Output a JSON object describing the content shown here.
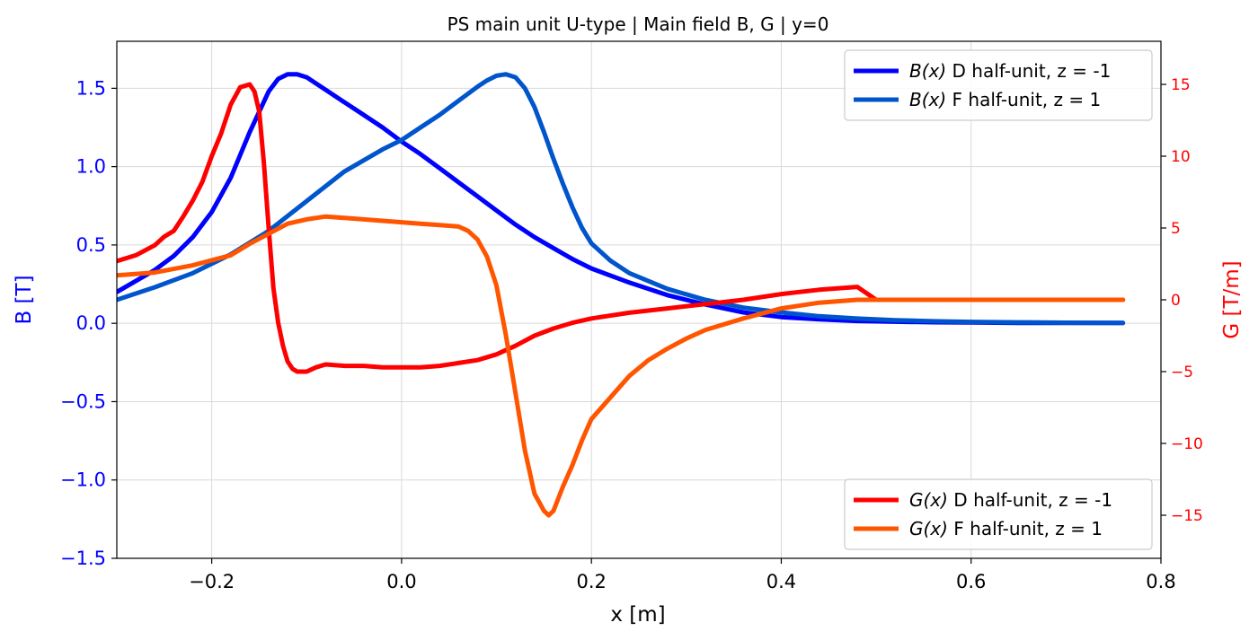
{
  "chart_data": {
    "type": "line",
    "title": "PS main unit U-type | Main field B, G | y=0",
    "xlabel": "x [m]",
    "ylabel_left": "B [T]",
    "ylabel_right": "G [T/m]",
    "xlim": [
      -0.3,
      0.8
    ],
    "ylim_left": [
      -1.5,
      1.8
    ],
    "ylim_right": [
      -18,
      18
    ],
    "x_ticks": [
      "−0.2",
      "0.0",
      "0.2",
      "0.4",
      "0.6",
      "0.8"
    ],
    "x_tick_values": [
      -0.2,
      0.0,
      0.2,
      0.4,
      0.6,
      0.8
    ],
    "y_left_ticks": [
      "−1.5",
      "−1.0",
      "−0.5",
      "0.0",
      "0.5",
      "1.0",
      "1.5"
    ],
    "y_left_tick_values": [
      -1.5,
      -1.0,
      -0.5,
      0.0,
      0.5,
      1.0,
      1.5
    ],
    "y_right_ticks": [
      "−15",
      "−10",
      "−5",
      "0",
      "5",
      "10",
      "15"
    ],
    "y_right_tick_values": [
      -15,
      -10,
      -5,
      0,
      5,
      10,
      15
    ],
    "grid": true,
    "left_axis_color": "#0000ff",
    "right_axis_color": "#ff0000",
    "legends": [
      {
        "placement": "top-right",
        "entries": [
          {
            "func": "B(x)",
            "text": " D half-unit, z = -1",
            "color": "#0000ff"
          },
          {
            "func": "B(x)",
            "text": " F half-unit, z = 1",
            "color": "#0055cc"
          }
        ]
      },
      {
        "placement": "bottom-right",
        "entries": [
          {
            "func": "G(x)",
            "text": " D half-unit, z = -1",
            "color": "#ff0000"
          },
          {
            "func": "G(x)",
            "text": " F half-unit, z = 1",
            "color": "#ff5500"
          }
        ]
      }
    ],
    "series": [
      {
        "name": "B(x) D half-unit, z = -1",
        "axis": "left",
        "color": "#0000ff",
        "x": [
          -0.3,
          -0.28,
          -0.26,
          -0.24,
          -0.22,
          -0.2,
          -0.18,
          -0.16,
          -0.14,
          -0.13,
          -0.12,
          -0.11,
          -0.1,
          -0.09,
          -0.08,
          -0.06,
          -0.04,
          -0.02,
          0.0,
          0.02,
          0.04,
          0.06,
          0.08,
          0.1,
          0.12,
          0.14,
          0.16,
          0.18,
          0.2,
          0.24,
          0.28,
          0.32,
          0.36,
          0.4,
          0.44,
          0.48,
          0.52,
          0.56,
          0.6,
          0.65,
          0.7,
          0.76
        ],
        "y": [
          0.2,
          0.27,
          0.34,
          0.43,
          0.55,
          0.71,
          0.93,
          1.22,
          1.48,
          1.56,
          1.59,
          1.59,
          1.57,
          1.53,
          1.49,
          1.41,
          1.33,
          1.25,
          1.16,
          1.08,
          0.99,
          0.9,
          0.81,
          0.72,
          0.63,
          0.55,
          0.48,
          0.41,
          0.35,
          0.26,
          0.18,
          0.12,
          0.07,
          0.04,
          0.025,
          0.015,
          0.01,
          0.007,
          0.005,
          0.003,
          0.002,
          0.002
        ]
      },
      {
        "name": "B(x) F half-unit, z = 1",
        "axis": "left",
        "color": "#0055cc",
        "x": [
          -0.3,
          -0.26,
          -0.22,
          -0.18,
          -0.14,
          -0.1,
          -0.06,
          -0.02,
          0.0,
          0.02,
          0.04,
          0.06,
          0.08,
          0.09,
          0.1,
          0.11,
          0.12,
          0.13,
          0.14,
          0.15,
          0.16,
          0.17,
          0.18,
          0.19,
          0.2,
          0.22,
          0.24,
          0.28,
          0.32,
          0.36,
          0.4,
          0.44,
          0.48,
          0.52,
          0.56,
          0.6,
          0.65,
          0.7,
          0.76
        ],
        "y": [
          0.15,
          0.23,
          0.32,
          0.44,
          0.59,
          0.78,
          0.97,
          1.11,
          1.17,
          1.25,
          1.33,
          1.42,
          1.51,
          1.55,
          1.58,
          1.59,
          1.57,
          1.5,
          1.38,
          1.22,
          1.05,
          0.89,
          0.74,
          0.61,
          0.51,
          0.4,
          0.32,
          0.22,
          0.15,
          0.1,
          0.07,
          0.045,
          0.03,
          0.02,
          0.013,
          0.009,
          0.006,
          0.004,
          0.002
        ]
      },
      {
        "name": "G(x) D half-unit, z = -1",
        "axis": "right",
        "color": "#ff0000",
        "x": [
          -0.3,
          -0.28,
          -0.26,
          -0.25,
          -0.24,
          -0.23,
          -0.22,
          -0.21,
          -0.2,
          -0.19,
          -0.18,
          -0.17,
          -0.16,
          -0.155,
          -0.15,
          -0.145,
          -0.14,
          -0.135,
          -0.13,
          -0.125,
          -0.12,
          -0.115,
          -0.11,
          -0.1,
          -0.09,
          -0.08,
          -0.06,
          -0.04,
          -0.02,
          0.0,
          0.02,
          0.04,
          0.06,
          0.08,
          0.1,
          0.12,
          0.14,
          0.16,
          0.18,
          0.2,
          0.24,
          0.28,
          0.32,
          0.36,
          0.4,
          0.44,
          0.48,
          0.5,
          0.55,
          0.6,
          0.65,
          0.68,
          0.7,
          0.76
        ],
        "y": [
          2.7,
          3.1,
          3.8,
          4.4,
          4.8,
          5.8,
          6.9,
          8.2,
          10.0,
          11.6,
          13.6,
          14.8,
          15.0,
          14.5,
          13.1,
          9.5,
          5.0,
          0.8,
          -1.6,
          -3.2,
          -4.3,
          -4.8,
          -5.0,
          -5.0,
          -4.7,
          -4.5,
          -4.6,
          -4.6,
          -4.7,
          -4.7,
          -4.7,
          -4.6,
          -4.4,
          -4.2,
          -3.8,
          -3.2,
          -2.5,
          -2.0,
          -1.6,
          -1.3,
          -0.9,
          -0.6,
          -0.3,
          0.0,
          0.4,
          0.7,
          0.9,
          0.0,
          0.0,
          0.0,
          0.0,
          0.0,
          0.0,
          0.0
        ]
      },
      {
        "name": "G(x) F half-unit, z = 1",
        "axis": "right",
        "color": "#ff5500",
        "x": [
          -0.3,
          -0.26,
          -0.22,
          -0.18,
          -0.16,
          -0.14,
          -0.12,
          -0.1,
          -0.08,
          -0.06,
          -0.04,
          -0.02,
          0.0,
          0.02,
          0.04,
          0.06,
          0.07,
          0.08,
          0.09,
          0.1,
          0.11,
          0.12,
          0.13,
          0.14,
          0.15,
          0.155,
          0.16,
          0.17,
          0.18,
          0.19,
          0.2,
          0.22,
          0.24,
          0.26,
          0.28,
          0.3,
          0.32,
          0.36,
          0.4,
          0.44,
          0.48,
          0.5,
          0.6,
          0.7,
          0.76
        ],
        "y": [
          1.7,
          1.9,
          2.4,
          3.1,
          3.9,
          4.6,
          5.3,
          5.6,
          5.8,
          5.7,
          5.6,
          5.5,
          5.4,
          5.3,
          5.2,
          5.1,
          4.8,
          4.2,
          3.0,
          1.0,
          -2.5,
          -6.5,
          -10.5,
          -13.5,
          -14.7,
          -15.0,
          -14.7,
          -13.0,
          -11.5,
          -9.8,
          -8.3,
          -6.8,
          -5.3,
          -4.2,
          -3.4,
          -2.7,
          -2.1,
          -1.3,
          -0.6,
          -0.2,
          0.0,
          0.0,
          0.0,
          0.0,
          0.0
        ]
      }
    ]
  }
}
